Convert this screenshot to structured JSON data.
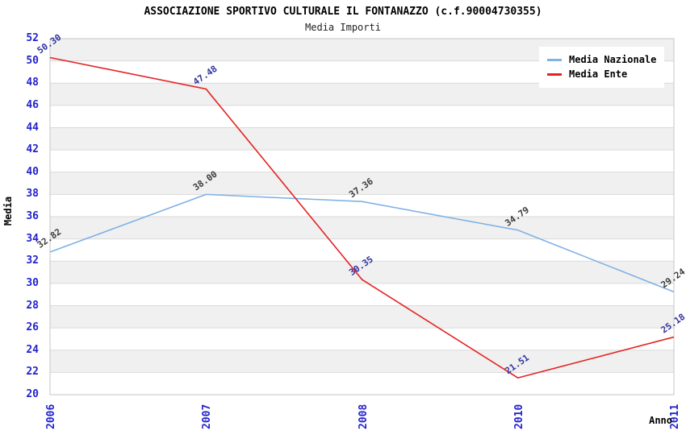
{
  "colors": {
    "background": "#ffffff",
    "band": "#f0f0f0",
    "grid": "#dadada",
    "frame": "#c6c6c6",
    "axis_tick_text": "#2323cd",
    "title_text": "#000000"
  },
  "chart_data": {
    "type": "line",
    "title": "ASSOCIAZIONE SPORTIVO CULTURALE IL FONTANAZZO (c.f.90004730355)",
    "subtitle": "Media Importi",
    "xlabel": "Anno",
    "ylabel": "Media",
    "categories": [
      "2006",
      "2007",
      "2008",
      "2010",
      "2011"
    ],
    "series": [
      {
        "name": "Media Nazionale",
        "color": "#7fb2e5",
        "label_color": "#3c3c3c",
        "values": [
          32.82,
          38.0,
          37.36,
          34.79,
          29.24
        ]
      },
      {
        "name": "Media Ente",
        "color": "#e42222",
        "label_color": "#3333a0",
        "values": [
          50.3,
          47.48,
          30.35,
          21.51,
          25.18
        ]
      }
    ],
    "ylim": [
      20,
      52
    ],
    "ytick_step": 2,
    "grid": "horizontal-bands",
    "legend_position": "top-right",
    "point_label_format": "0.00",
    "point_label_rotation_deg": -35
  }
}
